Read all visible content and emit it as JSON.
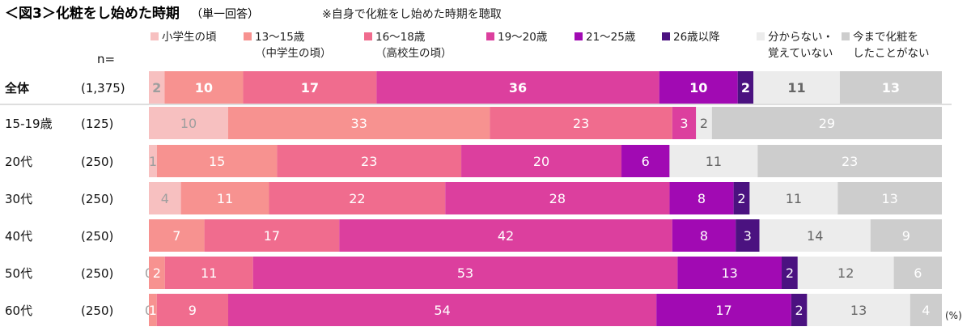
{
  "header": {
    "title": "＜図3＞化粧をし始めた時期",
    "subtitle": "（単一回答）",
    "note": "※自身で化粧をし始めた時期を聴取",
    "n_label": "n=",
    "unit": "(%)"
  },
  "colors": {
    "小学生の頃": "#f7c0c0",
    "13〜15歳（中学生の頃）": "#f79290",
    "16〜18歳（高校生の頃）": "#f06c8e",
    "19〜20歳": "#dc3f9e",
    "21〜25歳": "#a10ab3",
    "26歳以降": "#4b1280",
    "分からない・覚えていない": "#ececec",
    "今まで化粧をしたことがない": "#cdcdcd"
  },
  "chart_data": {
    "type": "bar",
    "orientation": "horizontal-stacked-100",
    "title": "＜図3＞化粧をし始めた時期",
    "unit": "(%)",
    "legend": [
      {
        "name": "小学生の頃",
        "lines": [
          "小学生の頃"
        ]
      },
      {
        "name": "13〜15歳（中学生の頃）",
        "lines": [
          "13〜15歳",
          "（中学生の頃）"
        ]
      },
      {
        "name": "16〜18歳（高校生の頃）",
        "lines": [
          "16〜18歳",
          "（高校生の頃）"
        ]
      },
      {
        "name": "19〜20歳",
        "lines": [
          "19〜20歳"
        ]
      },
      {
        "name": "21〜25歳",
        "lines": [
          "21〜25歳"
        ]
      },
      {
        "name": "26歳以降",
        "lines": [
          "26歳以降"
        ]
      },
      {
        "name": "分からない・覚えていない",
        "lines": [
          "分からない・",
          "覚えていない"
        ]
      },
      {
        "name": "今まで化粧をしたことがない",
        "lines": [
          "今まで化粧を",
          "したことがない"
        ]
      }
    ],
    "categories": [
      {
        "label": "全体",
        "n": "(1,375)",
        "total": true
      },
      {
        "label": "15-19歳",
        "n": "(125)"
      },
      {
        "label": "20代",
        "n": "(250)"
      },
      {
        "label": "30代",
        "n": "(250)"
      },
      {
        "label": "40代",
        "n": "(250)"
      },
      {
        "label": "50代",
        "n": "(250)"
      },
      {
        "label": "60代",
        "n": "(250)"
      }
    ],
    "series": [
      {
        "name": "小学生の頃",
        "values": [
          2,
          10,
          1,
          4,
          0,
          0,
          0
        ],
        "labels": [
          "2",
          "10",
          "1",
          "4",
          "",
          "0",
          "0"
        ]
      },
      {
        "name": "13〜15歳（中学生の頃）",
        "values": [
          10,
          33,
          15,
          11,
          7,
          2,
          1
        ],
        "labels": [
          "10",
          "33",
          "15",
          "11",
          "7",
          "2",
          "1"
        ]
      },
      {
        "name": "16〜18歳（高校生の頃）",
        "values": [
          17,
          23,
          23,
          22,
          17,
          11,
          9
        ],
        "labels": [
          "17",
          "23",
          "23",
          "22",
          "17",
          "11",
          "9"
        ]
      },
      {
        "name": "19〜20歳",
        "values": [
          36,
          3,
          20,
          28,
          42,
          53,
          54
        ],
        "labels": [
          "36",
          "3",
          "20",
          "28",
          "42",
          "53",
          "54"
        ]
      },
      {
        "name": "21〜25歳",
        "values": [
          10,
          0,
          6,
          8,
          8,
          13,
          17
        ],
        "labels": [
          "10",
          "",
          "6",
          "8",
          "8",
          "13",
          "17"
        ]
      },
      {
        "name": "26歳以降",
        "values": [
          2,
          0,
          0,
          2,
          3,
          2,
          2
        ],
        "labels": [
          "2",
          "",
          "",
          "2",
          "3",
          "2",
          "2"
        ]
      },
      {
        "name": "分からない・覚えていない",
        "values": [
          11,
          2,
          11,
          11,
          14,
          12,
          13
        ],
        "labels": [
          "11",
          "2",
          "11",
          "11",
          "14",
          "12",
          "13"
        ]
      },
      {
        "name": "今まで化粧をしたことがない",
        "values": [
          13,
          29,
          23,
          13,
          9,
          6,
          4
        ],
        "labels": [
          "13",
          "29",
          "23",
          "13",
          "9",
          "6",
          "4"
        ]
      }
    ]
  }
}
